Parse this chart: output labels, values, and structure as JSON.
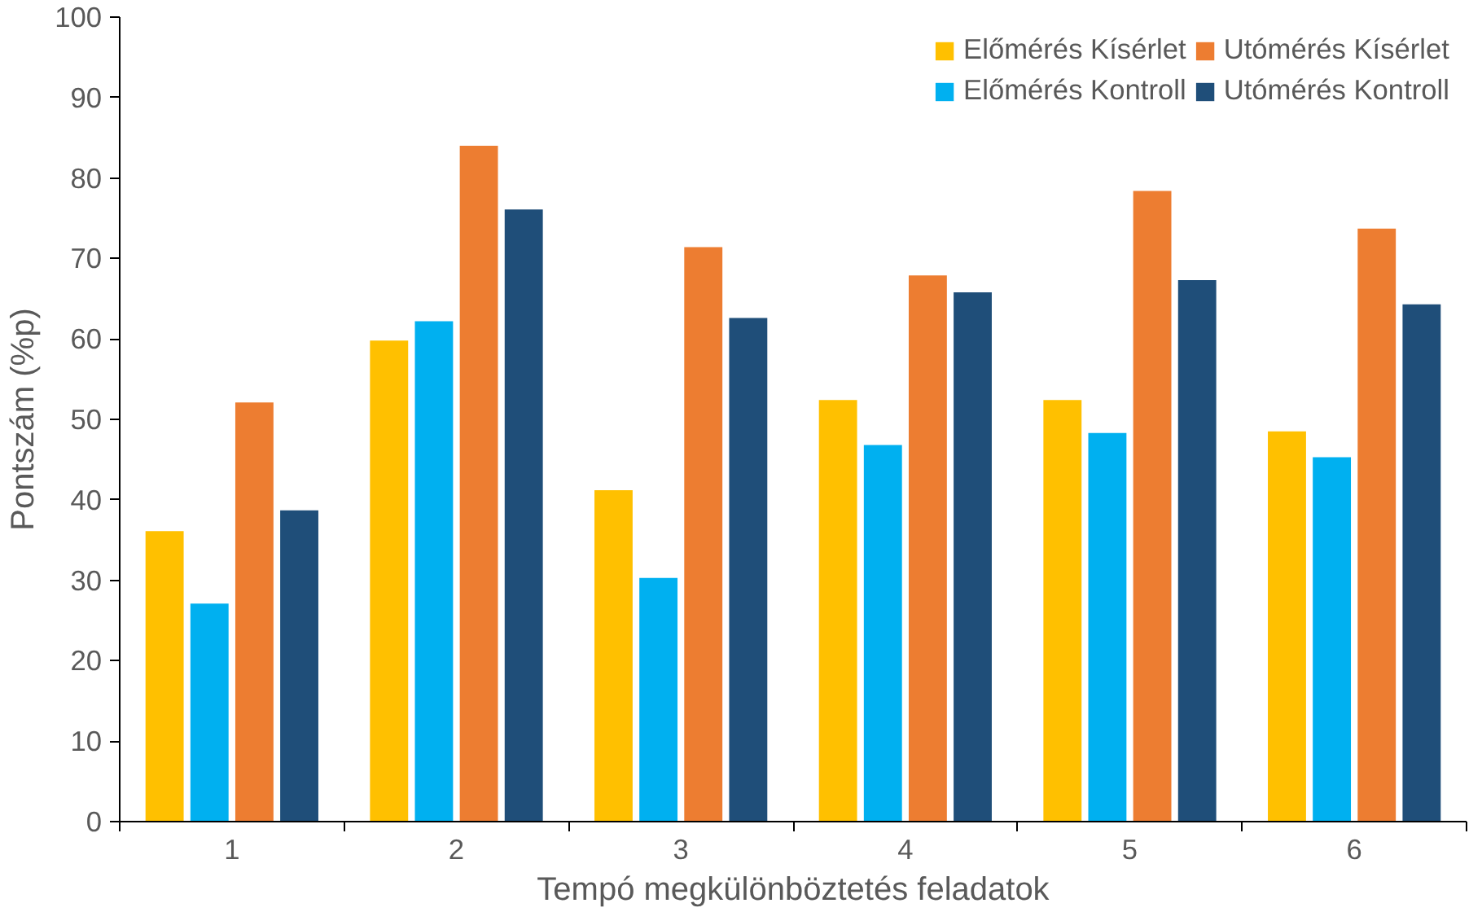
{
  "chart_data": {
    "type": "bar",
    "xlabel": "Tempó megkülönböztetés feladatok",
    "ylabel": "Pontszám (%p)",
    "categories": [
      "1",
      "2",
      "3",
      "4",
      "5",
      "6"
    ],
    "series": [
      {
        "name": "Előmérés Kísérlet",
        "color": "#ffc000",
        "values": [
          36.1,
          59.8,
          41.2,
          52.4,
          52.4,
          48.5
        ]
      },
      {
        "name": "Előmérés Kontroll",
        "color": "#00b0f0",
        "values": [
          27.1,
          62.2,
          30.3,
          46.8,
          48.3,
          45.3
        ]
      },
      {
        "name": "Utómérés Kísérlet",
        "color": "#ed7d31",
        "values": [
          52.1,
          84.0,
          71.4,
          67.9,
          78.4,
          73.7
        ]
      },
      {
        "name": "Utómérés Kontroll",
        "color": "#1f4e79",
        "values": [
          38.7,
          76.1,
          62.6,
          65.8,
          67.3,
          64.3
        ]
      }
    ],
    "ylim": [
      0,
      100
    ],
    "yticks": [
      0,
      10,
      20,
      30,
      40,
      50,
      60,
      70,
      80,
      90,
      100
    ],
    "grid": false,
    "legend": "top right"
  }
}
